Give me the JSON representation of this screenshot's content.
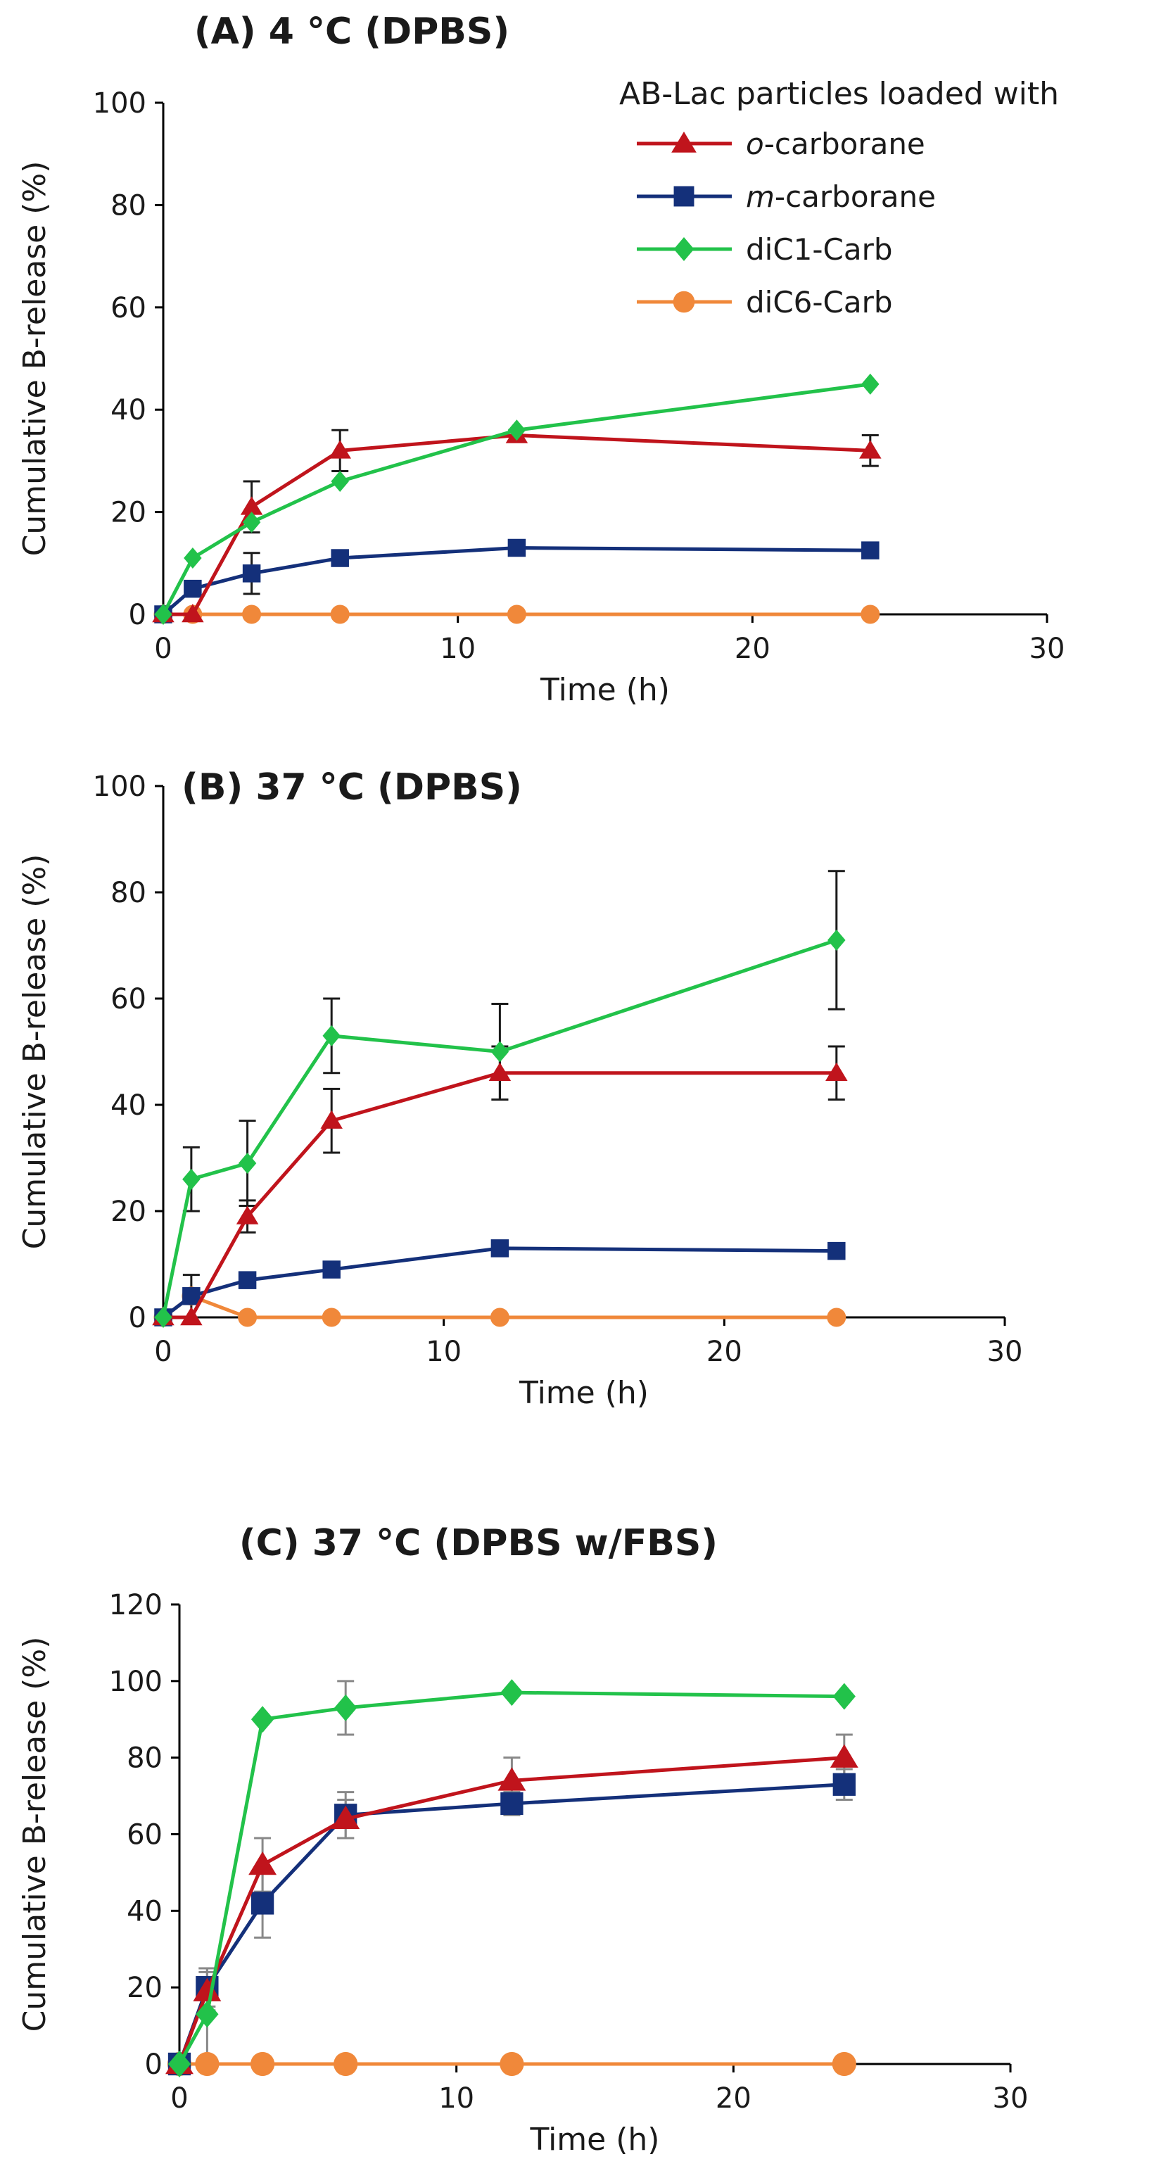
{
  "legend": {
    "title": "AB-Lac particles loaded with",
    "entries": [
      {
        "prefix": "o",
        "rest": "-carborane",
        "color": "#c0141c",
        "marker": "triangle"
      },
      {
        "prefix": "m",
        "rest": "-carborane",
        "color": "#14307a",
        "marker": "square"
      },
      {
        "prefix": "",
        "rest": "diC1-Carb",
        "color": "#22c24a",
        "marker": "diamond"
      },
      {
        "prefix": "",
        "rest": "diC6-Carb",
        "color": "#f0883a",
        "marker": "circle"
      }
    ]
  },
  "chart_data": [
    {
      "type": "line",
      "title": "(A) 4 °C (DPBS)",
      "xlabel": "Time (h)",
      "ylabel": "Cumulative B-release (%)",
      "xlim": [
        0,
        30
      ],
      "ylim": [
        0,
        100
      ],
      "xticks": [
        0,
        10,
        20,
        30
      ],
      "yticks": [
        0,
        20,
        40,
        60,
        80,
        100
      ],
      "x": [
        0,
        1,
        3,
        6,
        12,
        24
      ],
      "series": [
        {
          "name": "o-carborane",
          "values": [
            0,
            0,
            21,
            32,
            35,
            32
          ],
          "err": [
            0,
            0,
            5,
            4,
            1,
            3
          ]
        },
        {
          "name": "m-carborane",
          "values": [
            0,
            5,
            8,
            11,
            13,
            12.5
          ],
          "err": [
            0,
            1,
            4,
            1,
            1,
            1
          ]
        },
        {
          "name": "diC1-Carb",
          "values": [
            0,
            11,
            18,
            26,
            36,
            45
          ],
          "err": [
            0,
            0,
            0,
            0,
            0,
            0
          ]
        },
        {
          "name": "diC6-Carb",
          "values": [
            0,
            0,
            0,
            0,
            0,
            0
          ],
          "err": [
            0,
            0,
            0,
            0,
            0,
            0
          ]
        }
      ]
    },
    {
      "type": "line",
      "title": "(B) 37 °C (DPBS)",
      "xlabel": "Time (h)",
      "ylabel": "Cumulative B-release (%)",
      "xlim": [
        0,
        30
      ],
      "ylim": [
        0,
        100
      ],
      "xticks": [
        0,
        10,
        20,
        30
      ],
      "yticks": [
        0,
        20,
        40,
        60,
        80,
        100
      ],
      "x": [
        0,
        1,
        3,
        6,
        12,
        24
      ],
      "series": [
        {
          "name": "o-carborane",
          "values": [
            0,
            0,
            19,
            37,
            46,
            46
          ],
          "err": [
            0,
            0,
            3,
            6,
            5,
            5
          ]
        },
        {
          "name": "m-carborane",
          "values": [
            0,
            4,
            7,
            9,
            13,
            12.5
          ],
          "err": [
            0,
            4,
            1,
            1,
            1,
            1
          ]
        },
        {
          "name": "diC1-Carb",
          "values": [
            0,
            26,
            29,
            53,
            50,
            71
          ],
          "err": [
            0,
            6,
            8,
            7,
            9,
            13
          ]
        },
        {
          "name": "diC6-Carb",
          "values": [
            0,
            4,
            0,
            0,
            0,
            0
          ],
          "err": [
            0,
            0,
            0,
            0,
            0,
            0
          ]
        }
      ]
    },
    {
      "type": "line",
      "title": "(C) 37 °C (DPBS w/FBS)",
      "xlabel": "Time (h)",
      "ylabel": "Cumulative B-release (%)",
      "xlim": [
        0,
        30
      ],
      "ylim": [
        0,
        120
      ],
      "xticks": [
        0,
        10,
        20,
        30
      ],
      "yticks": [
        0,
        20,
        40,
        60,
        80,
        100,
        120
      ],
      "x": [
        0,
        1,
        3,
        6,
        12,
        24
      ],
      "series": [
        {
          "name": "o-carborane",
          "values": [
            0,
            19,
            52,
            64,
            74,
            80
          ],
          "err": [
            0,
            5,
            7,
            5,
            6,
            6
          ]
        },
        {
          "name": "m-carborane",
          "values": [
            0,
            20,
            42,
            65,
            68,
            73
          ],
          "err": [
            0,
            5,
            9,
            6,
            3,
            4
          ]
        },
        {
          "name": "diC1-Carb",
          "values": [
            0,
            13,
            90,
            93,
            97,
            96
          ],
          "err": [
            0,
            12,
            0,
            7,
            0,
            0
          ]
        },
        {
          "name": "diC6-Carb",
          "values": [
            0,
            0,
            0,
            0,
            0,
            0
          ],
          "err": [
            0,
            0,
            0,
            0,
            0,
            0
          ]
        }
      ]
    }
  ]
}
